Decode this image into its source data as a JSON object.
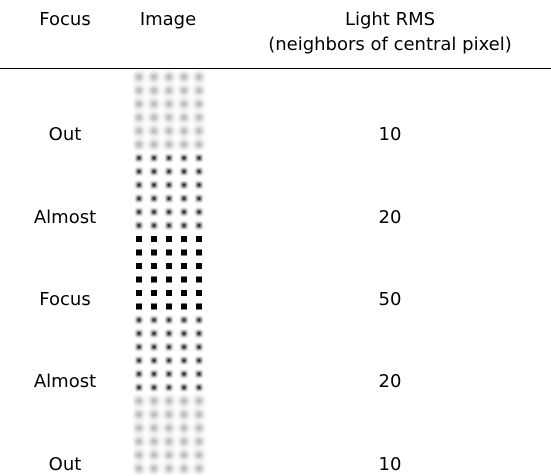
{
  "table": {
    "header": [
      "Focus",
      "Image",
      "Light RMS",
      "(neighbors of central pixel)"
    ],
    "rows": [
      [
        "Out",
        10
      ],
      [
        "Almost",
        20
      ],
      [
        "Focus",
        50
      ],
      [
        "Almost",
        20
      ],
      [
        "Out",
        10
      ]
    ]
  }
}
